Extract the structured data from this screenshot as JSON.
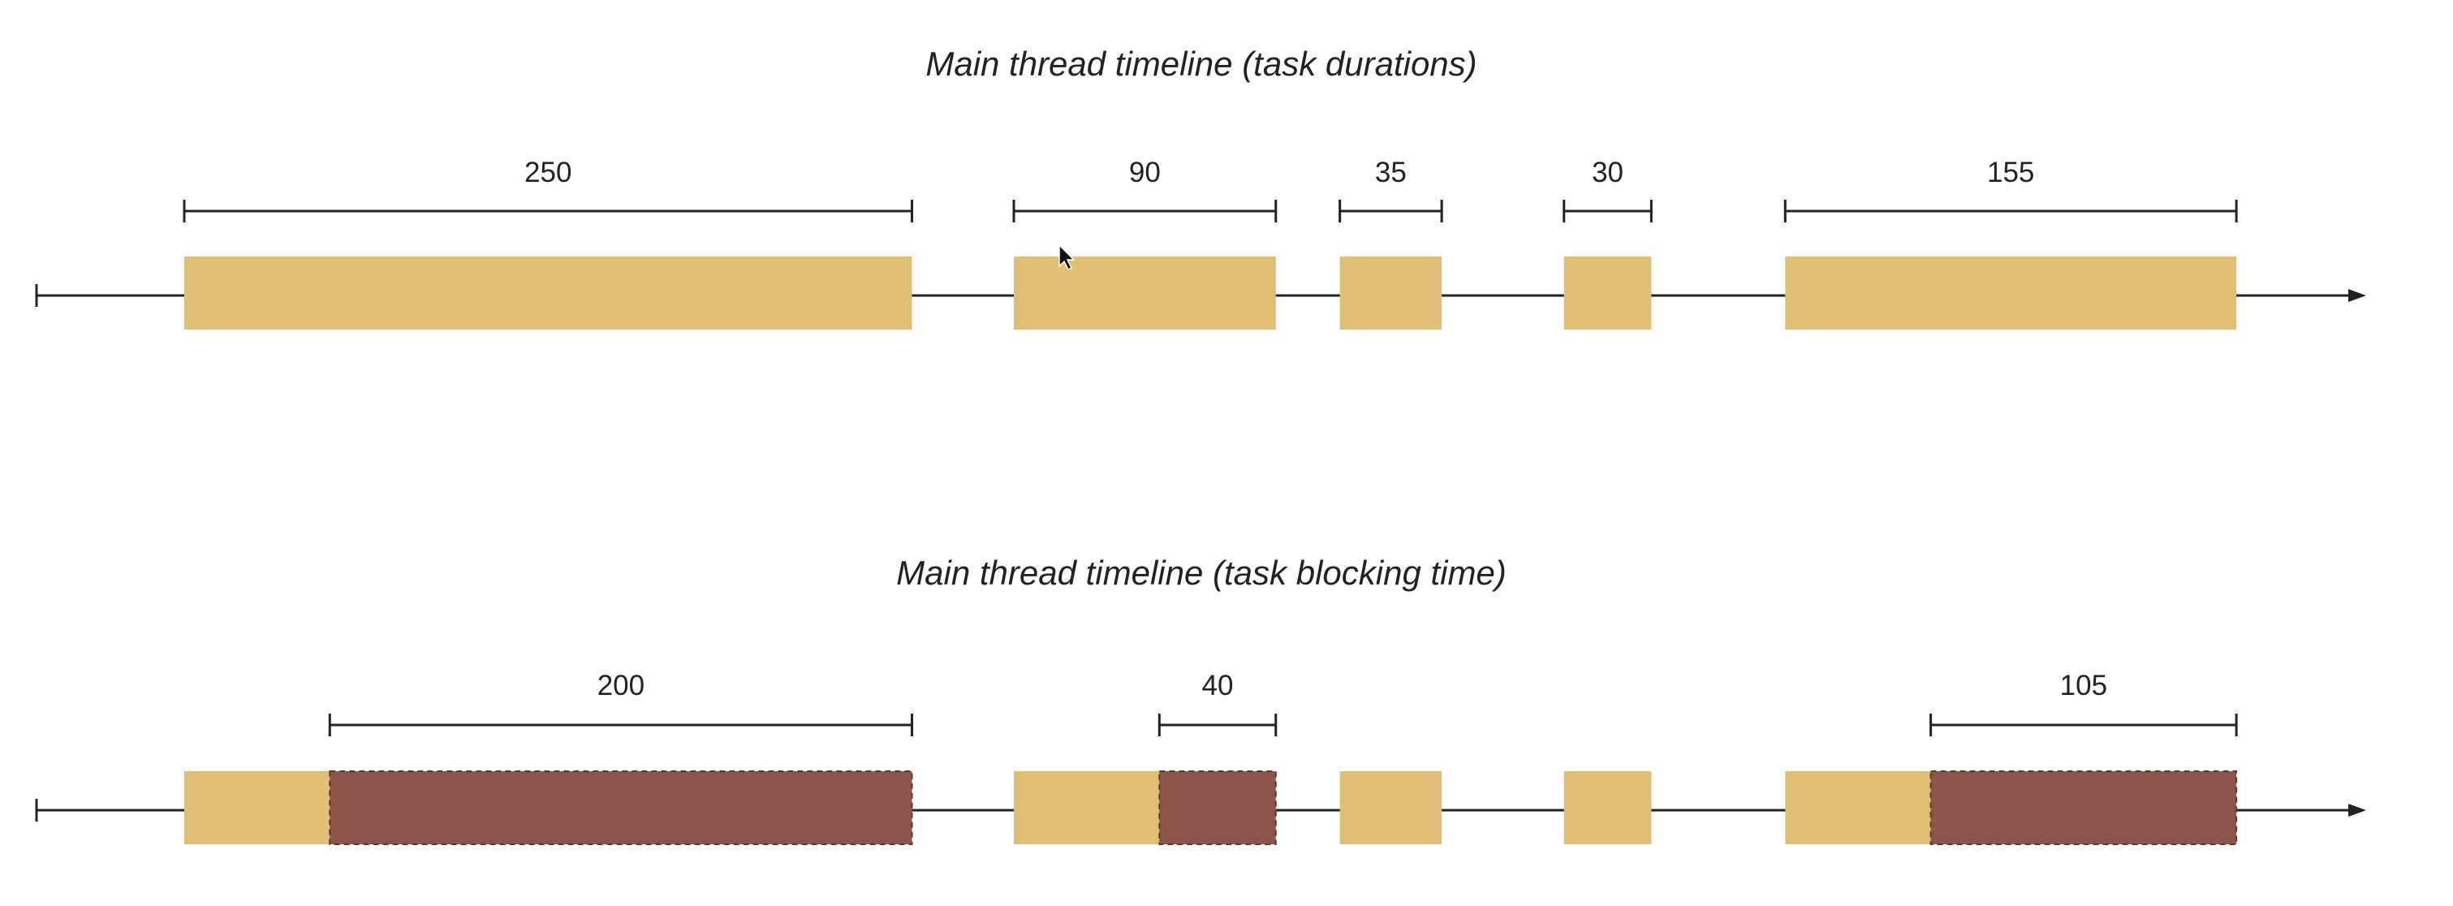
{
  "colors": {
    "background": "#ffffff",
    "axis": "#222222",
    "task_fill": "#dfbf73",
    "blocking_fill": "#8b5647",
    "blocking_border": "#5a3a30"
  },
  "timelines": [
    {
      "id": "durations",
      "title": "Main thread timeline (task durations)",
      "tasks": [
        {
          "start": 0,
          "duration": 250,
          "blocking": 0
        },
        {
          "start": 285,
          "duration": 90,
          "blocking": 0
        },
        {
          "start": 397,
          "duration": 35,
          "blocking": 0
        },
        {
          "start": 474,
          "duration": 30,
          "blocking": 0
        },
        {
          "start": 550,
          "duration": 155,
          "blocking": 0
        }
      ],
      "spans": [
        {
          "label": "250",
          "from": 0,
          "to": 250
        },
        {
          "label": "90",
          "from": 285,
          "to": 375
        },
        {
          "label": "35",
          "from": 397,
          "to": 432
        },
        {
          "label": "30",
          "from": 474,
          "to": 504
        },
        {
          "label": "155",
          "from": 550,
          "to": 705
        }
      ]
    },
    {
      "id": "blocking",
      "title": "Main thread timeline (task blocking time)",
      "tasks": [
        {
          "start": 0,
          "duration": 250,
          "blocking": 200
        },
        {
          "start": 285,
          "duration": 90,
          "blocking": 40
        },
        {
          "start": 397,
          "duration": 35,
          "blocking": 0
        },
        {
          "start": 474,
          "duration": 30,
          "blocking": 0
        },
        {
          "start": 550,
          "duration": 155,
          "blocking": 105
        }
      ],
      "spans": [
        {
          "label": "200",
          "from": 50,
          "to": 250
        },
        {
          "label": "40",
          "from": 335,
          "to": 375
        },
        {
          "label": "105",
          "from": 600,
          "to": 705
        }
      ]
    }
  ]
}
